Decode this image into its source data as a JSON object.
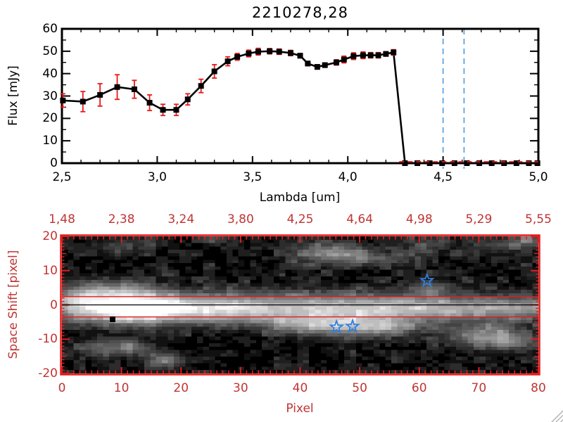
{
  "window": {
    "background": "#ffffff"
  },
  "colors": {
    "axis_black": "#000000",
    "red_text": "#c03434",
    "red_line": "#e31b1b",
    "blue_dash": "#4a9be0",
    "star_blue": "#2f7fe0",
    "error_red": "#e81818",
    "grip_gray": "#b9b9b9"
  },
  "chart_data": [
    {
      "type": "line",
      "title": "2210278,28",
      "xlabel": "Lambda [um]",
      "ylabel": "Flux [mJy]",
      "xlim": [
        2.5,
        5.0
      ],
      "ylim": [
        0,
        60
      ],
      "xticks": [
        2.5,
        3.0,
        3.5,
        4.0,
        4.5,
        5.0
      ],
      "xtick_labels": [
        "2,5",
        "3,0",
        "3,5",
        "4,0",
        "4,5",
        "5,0"
      ],
      "x_minor_step": 0.1,
      "yticks": [
        0,
        10,
        20,
        30,
        40,
        50,
        60
      ],
      "ytick_labels": [
        "0",
        "10",
        "20",
        "30",
        "40",
        "50",
        "60"
      ],
      "y_minor_step": 5,
      "grid": false,
      "series": [
        {
          "name": "spectrum",
          "marker": "square",
          "line_color": "#000000",
          "error_color": "#e81818",
          "x": [
            2.505,
            2.61,
            2.7,
            2.79,
            2.88,
            2.96,
            3.03,
            3.1,
            3.16,
            3.23,
            3.3,
            3.37,
            3.42,
            3.48,
            3.53,
            3.59,
            3.64,
            3.7,
            3.75,
            3.79,
            3.84,
            3.88,
            3.94,
            3.98,
            4.03,
            4.08,
            4.12,
            4.16,
            4.2,
            4.24,
            4.3,
            4.365,
            4.43,
            4.495,
            4.56,
            4.625,
            4.69,
            4.755,
            4.82,
            4.885,
            4.95,
            4.995
          ],
          "y": [
            28,
            27.5,
            30.5,
            34,
            33,
            27,
            23.8,
            23.8,
            28.5,
            34.5,
            41,
            45.5,
            47.5,
            49,
            49.8,
            50,
            49.8,
            49.2,
            48,
            44.5,
            43,
            43.8,
            45,
            46.3,
            47.8,
            48.2,
            48.2,
            48.2,
            48.8,
            49.5,
            0,
            0,
            0,
            0,
            0,
            0,
            0,
            0,
            0,
            0,
            0,
            0
          ],
          "yerr": [
            3,
            4.5,
            5,
            5.5,
            4,
            3.5,
            2.5,
            2.5,
            2.5,
            3,
            3,
            2,
            1.5,
            1.5,
            1.5,
            1.2,
            1.2,
            1.2,
            1,
            1,
            1,
            1,
            1.2,
            1.5,
            1.5,
            1.5,
            1.2,
            1.2,
            1,
            1.2,
            0.4,
            0.4,
            0.4,
            0.4,
            0.4,
            0.4,
            0.4,
            0.4,
            0.4,
            0.4,
            0.4,
            0.4
          ]
        }
      ],
      "vlines": {
        "x": [
          4.5,
          4.61
        ],
        "style": "dashed",
        "color": "#4a9be0"
      },
      "zero_dashed_line": {
        "y": 0,
        "x_from": 4.27,
        "x_to": 5.0,
        "color": "#e81818"
      }
    },
    {
      "type": "heatmap",
      "xlabel": "Pixel",
      "ylabel": "Space Shift [pixel]",
      "xlim": [
        0,
        80
      ],
      "ylim": [
        -20,
        20
      ],
      "xticks": [
        0,
        10,
        20,
        30,
        40,
        50,
        60,
        70,
        80
      ],
      "xtick_labels": [
        "0",
        "10",
        "20",
        "30",
        "40",
        "50",
        "60",
        "70",
        "80"
      ],
      "yticks": [
        20,
        10,
        0,
        -10,
        -20
      ],
      "ytick_labels": [
        "20",
        "10",
        "0",
        "-10",
        "-20"
      ],
      "top_axis_tick_positions": [
        0,
        10,
        20,
        30,
        40,
        50,
        60,
        70,
        80
      ],
      "top_axis_tick_labels": [
        "1,48",
        "2,38",
        "3,24",
        "3,80",
        "4,25",
        "4,64",
        "4,98",
        "5,29",
        "5,55"
      ],
      "aperture_lines": {
        "upper": 2.4,
        "lower": -3.5,
        "color": "#e31b1b"
      },
      "center_line": {
        "y": 0,
        "color": "#000000"
      },
      "stars": [
        {
          "x": 46.1,
          "y": -6.5
        },
        {
          "x": 48.8,
          "y": -6.3
        },
        {
          "x": 61.3,
          "y": 7.1
        }
      ],
      "square_marker": {
        "x": 8.5,
        "y": -4.2
      },
      "grid_size": {
        "nx": 81,
        "ny": 41
      },
      "blobs": [
        {
          "x": 2,
          "y": -0.5,
          "sx": 4,
          "sy": 2.6,
          "a": 0.5
        },
        {
          "x": 11,
          "y": -0.8,
          "sx": 5,
          "sy": 2.9,
          "a": 1.05
        },
        {
          "x": 22,
          "y": -1,
          "sx": 8,
          "sy": 2.6,
          "a": 0.6
        },
        {
          "x": 38,
          "y": -1,
          "sx": 12,
          "sy": 2.5,
          "a": 0.5
        },
        {
          "x": 55,
          "y": -1,
          "sx": 10,
          "sy": 2.4,
          "a": 0.45
        },
        {
          "x": 70,
          "y": -1,
          "sx": 8,
          "sy": 2.2,
          "a": 0.38
        },
        {
          "x": 79,
          "y": -0.8,
          "sx": 4,
          "sy": 2.0,
          "a": 0.3
        },
        {
          "x": 40,
          "y": 3.5,
          "sx": 26,
          "sy": 1.6,
          "a": 0.1
        },
        {
          "x": 35,
          "y": -5,
          "sx": 26,
          "sy": 1.6,
          "a": 0.09
        },
        {
          "x": 8,
          "y": 4.5,
          "sx": 4.5,
          "sy": 2.2,
          "a": 0.3
        },
        {
          "x": 3,
          "y": 3,
          "sx": 2.5,
          "sy": 2.0,
          "a": 0.25
        },
        {
          "x": 9,
          "y": 17.5,
          "sx": 3,
          "sy": 1.6,
          "a": 0.14
        },
        {
          "x": 14,
          "y": 19,
          "sx": 2.5,
          "sy": 1.2,
          "a": 0.12
        },
        {
          "x": 26,
          "y": 19.5,
          "sx": 2,
          "sy": 1.0,
          "a": 0.15
        },
        {
          "x": 44,
          "y": 15.5,
          "sx": 3.5,
          "sy": 2.2,
          "a": 0.38
        },
        {
          "x": 50,
          "y": 14.5,
          "sx": 3,
          "sy": 1.8,
          "a": 0.3
        },
        {
          "x": 56,
          "y": 13.5,
          "sx": 2.5,
          "sy": 1.2,
          "a": 0.18
        },
        {
          "x": 60,
          "y": 16,
          "sx": 2,
          "sy": 1.2,
          "a": 0.15
        },
        {
          "x": 62,
          "y": 18.8,
          "sx": 2.5,
          "sy": 1.4,
          "a": 0.18
        },
        {
          "x": 62,
          "y": 5,
          "sx": 2.5,
          "sy": 1.5,
          "a": 0.3
        },
        {
          "x": 7,
          "y": -13,
          "sx": 3.5,
          "sy": 1.8,
          "a": 0.3
        },
        {
          "x": 12,
          "y": -12.5,
          "sx": 2,
          "sy": 1.3,
          "a": 0.22
        },
        {
          "x": 17,
          "y": -16.5,
          "sx": 2.2,
          "sy": 1.5,
          "a": 0.42
        },
        {
          "x": 48,
          "y": -6.5,
          "sx": 6,
          "sy": 2.2,
          "a": 0.45
        },
        {
          "x": 40,
          "y": -5.5,
          "sx": 5,
          "sy": 1.8,
          "a": 0.28
        },
        {
          "x": 55,
          "y": -6.5,
          "sx": 4,
          "sy": 1.8,
          "a": 0.3
        },
        {
          "x": 71,
          "y": -9,
          "sx": 4.5,
          "sy": 2.4,
          "a": 0.42
        },
        {
          "x": 76,
          "y": -11,
          "sx": 3,
          "sy": 1.8,
          "a": 0.3
        },
        {
          "x": 75,
          "y": 18,
          "sx": 4,
          "sy": 1.4,
          "a": 0.22
        },
        {
          "x": 68,
          "y": 15.5,
          "sx": 2,
          "sy": 1.0,
          "a": 0.12
        },
        {
          "x": 79,
          "y": 19.5,
          "sx": 2,
          "sy": 1.2,
          "a": 0.25
        }
      ],
      "noise": {
        "amp1": 0.1,
        "amp2": 0.12,
        "threshold": 0.55
      }
    }
  ]
}
